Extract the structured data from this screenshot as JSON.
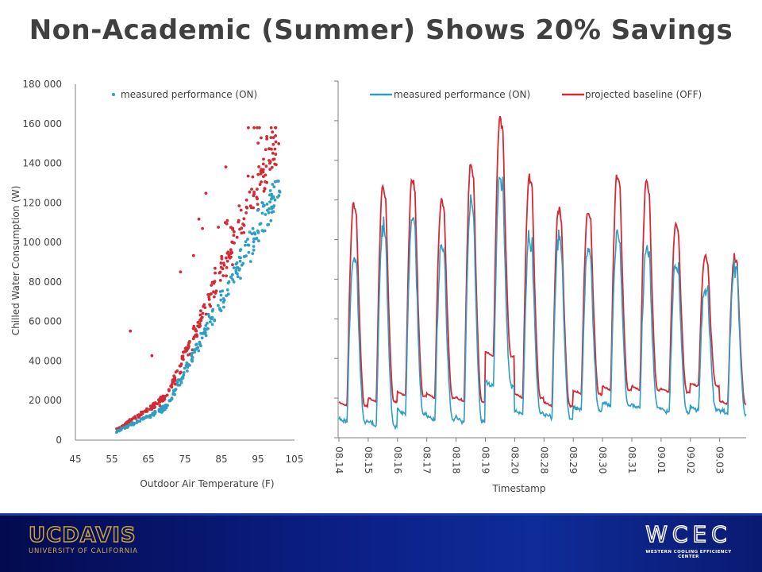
{
  "slide": {
    "title": "Non-Academic (Summer) Shows 20% Savings"
  },
  "colors": {
    "on": "#2e9fc4",
    "off": "#d42a35",
    "axis": "#7f7f7f",
    "text": "#404040"
  },
  "chart_data": [
    {
      "type": "scatter",
      "title": "",
      "xlabel": "Outdoor Air Temperature (F)",
      "ylabel": "Chilled Water Consumption (W)",
      "xlim": [
        45,
        105
      ],
      "ylim": [
        0,
        180000
      ],
      "x_ticks": [
        "45",
        "55",
        "65",
        "75",
        "85",
        "95",
        "105"
      ],
      "y_ticks": [
        "0",
        "20 000",
        "40 000",
        "60 000",
        "80 000",
        "100 000",
        "120 000",
        "140 000",
        "160 000",
        "180 000"
      ],
      "grid": false,
      "legend_position": "top-left",
      "series": [
        {
          "name": "measured performance (ON)",
          "color": "#2e9fc4"
        },
        {
          "name": "",
          "color": "#d42a35"
        }
      ]
    },
    {
      "type": "line",
      "title": "",
      "xlabel": "Timestamp",
      "ylabel": "",
      "ylim": [
        0,
        180000
      ],
      "grid": false,
      "legend_position": "top",
      "categories": [
        "08.14",
        "08.15",
        "08.16",
        "08.17",
        "08.18",
        "08.19",
        "08.20",
        "08.28",
        "08.29",
        "08.30",
        "08.31",
        "09.01",
        "09.02",
        "09.03"
      ],
      "series": [
        {
          "name": "measured performance (ON)",
          "color": "#2e9fc4",
          "daily_peak": [
            93000,
            106000,
            111000,
            98000,
            119000,
            132000,
            101000,
            101000,
            95000,
            104000,
            97000,
            89000,
            76000,
            87000
          ],
          "daily_min": [
            8000,
            6000,
            12000,
            9000,
            8000,
            26000,
            12000,
            10000,
            14000,
            16000,
            15000,
            13000,
            14000,
            12000
          ]
        },
        {
          "name": "projected baseline (OFF)",
          "color": "#d42a35",
          "daily_peak": [
            119000,
            128000,
            131000,
            121000,
            138000,
            162000,
            132000,
            116000,
            115000,
            133000,
            130000,
            108000,
            92000,
            91000
          ],
          "daily_min": [
            16000,
            18000,
            21000,
            20000,
            18000,
            41000,
            20000,
            16000,
            22000,
            24000,
            24000,
            23000,
            26000,
            17000
          ]
        }
      ]
    }
  ]
}
